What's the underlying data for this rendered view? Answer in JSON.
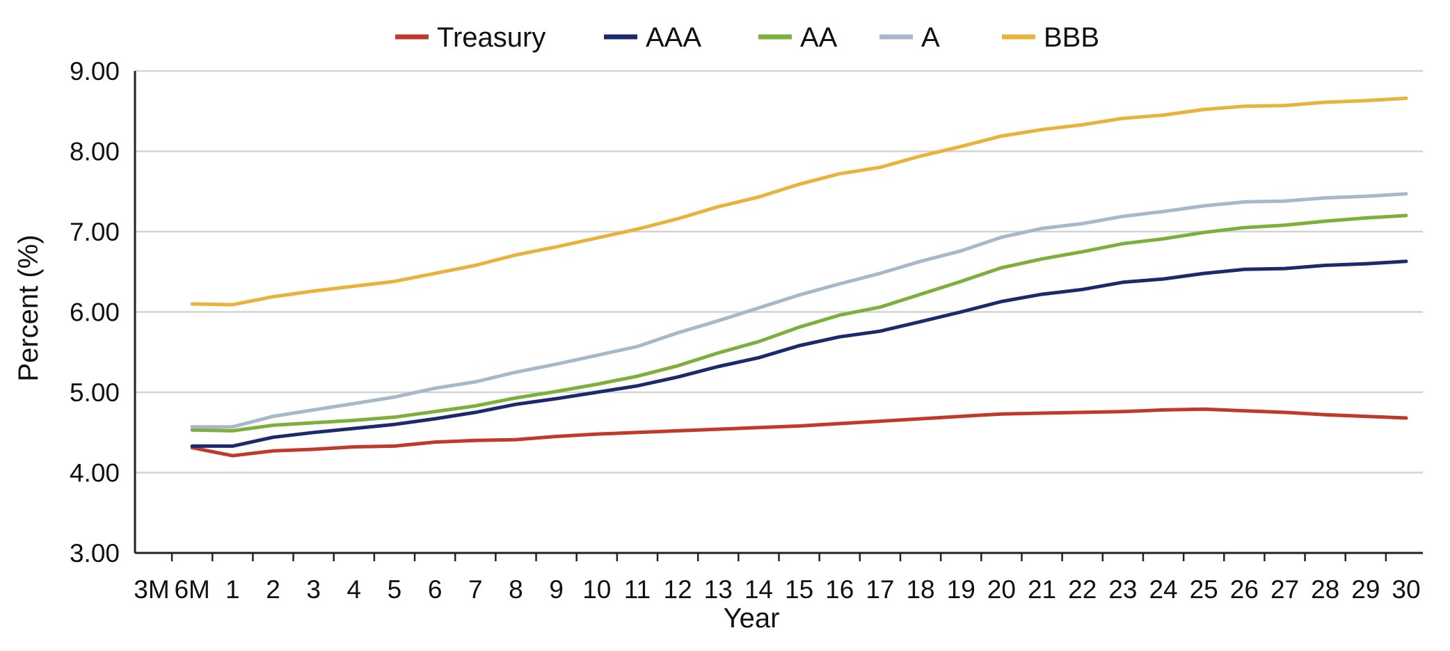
{
  "chart_data": {
    "type": "line",
    "title": "",
    "xlabel": "Year",
    "ylabel": "Percent (%)",
    "ylim": [
      3.0,
      9.0
    ],
    "yticks": [
      "3.00",
      "4.00",
      "5.00",
      "6.00",
      "7.00",
      "8.00",
      "9.00"
    ],
    "categories": [
      "3M",
      "6M",
      "1",
      "2",
      "3",
      "4",
      "5",
      "6",
      "7",
      "8",
      "9",
      "10",
      "11",
      "12",
      "13",
      "14",
      "15",
      "16",
      "17",
      "18",
      "19",
      "20",
      "21",
      "22",
      "23",
      "24",
      "25",
      "26",
      "27",
      "28",
      "29",
      "30"
    ],
    "grid": "horizontal",
    "legend_position": "top",
    "series": [
      {
        "name": "Treasury",
        "color": "#C0392B",
        "values": [
          null,
          4.31,
          4.21,
          4.27,
          4.29,
          4.32,
          4.33,
          4.38,
          4.4,
          4.41,
          4.45,
          4.48,
          4.5,
          4.52,
          4.54,
          4.56,
          4.58,
          4.61,
          4.64,
          4.67,
          4.7,
          4.73,
          4.74,
          4.75,
          4.76,
          4.78,
          4.79,
          4.77,
          4.75,
          4.72,
          4.7,
          4.68
        ]
      },
      {
        "name": "AAA",
        "color": "#1B2A6B",
        "values": [
          null,
          4.33,
          4.33,
          4.44,
          4.5,
          4.55,
          4.6,
          4.67,
          4.75,
          4.85,
          4.92,
          5.0,
          5.08,
          5.19,
          5.32,
          5.43,
          5.58,
          5.69,
          5.76,
          5.88,
          6.0,
          6.13,
          6.22,
          6.28,
          6.37,
          6.41,
          6.48,
          6.53,
          6.54,
          6.58,
          6.6,
          6.63
        ]
      },
      {
        "name": "AA",
        "color": "#7CAF3C",
        "values": [
          null,
          4.53,
          4.52,
          4.59,
          4.62,
          4.65,
          4.69,
          4.76,
          4.83,
          4.93,
          5.01,
          5.1,
          5.2,
          5.33,
          5.49,
          5.63,
          5.81,
          5.96,
          6.06,
          6.22,
          6.38,
          6.55,
          6.66,
          6.75,
          6.85,
          6.91,
          6.99,
          7.05,
          7.08,
          7.13,
          7.17,
          7.2
        ]
      },
      {
        "name": "A",
        "color": "#A6B8C9",
        "values": [
          null,
          4.57,
          4.57,
          4.7,
          4.78,
          4.86,
          4.94,
          5.05,
          5.13,
          5.25,
          5.35,
          5.46,
          5.57,
          5.74,
          5.89,
          6.05,
          6.21,
          6.35,
          6.48,
          6.63,
          6.76,
          6.93,
          7.04,
          7.1,
          7.19,
          7.25,
          7.32,
          7.37,
          7.38,
          7.42,
          7.44,
          7.47
        ]
      },
      {
        "name": "BBB",
        "color": "#E8B33A",
        "values": [
          null,
          6.1,
          6.09,
          6.19,
          6.26,
          6.32,
          6.38,
          6.48,
          6.58,
          6.71,
          6.81,
          6.92,
          7.03,
          7.16,
          7.31,
          7.43,
          7.59,
          7.72,
          7.8,
          7.94,
          8.06,
          8.19,
          8.27,
          8.33,
          8.41,
          8.45,
          8.52,
          8.56,
          8.57,
          8.61,
          8.63,
          8.66
        ]
      }
    ]
  }
}
